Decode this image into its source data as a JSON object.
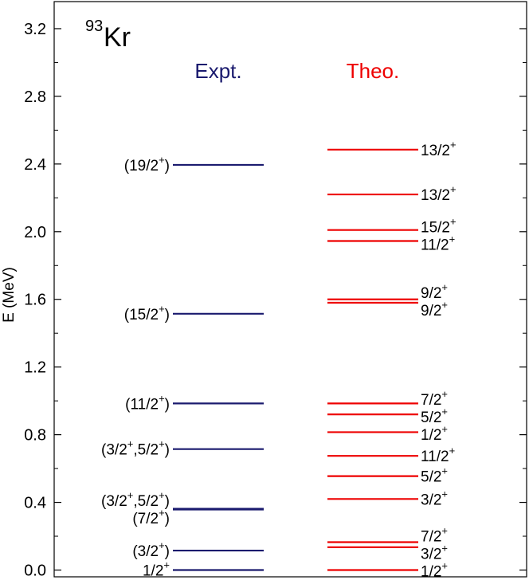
{
  "chart_data": {
    "type": "level-scheme",
    "nucleus": {
      "mass": "93",
      "symbol": "Kr"
    },
    "ylabel": "E (MeV)",
    "ylim": [
      -0.04,
      3.36
    ],
    "yticks": [
      "0.0",
      "0.4",
      "0.8",
      "1.2",
      "1.6",
      "2.0",
      "2.4",
      "2.8",
      "3.2"
    ],
    "columns": [
      {
        "name": "Expt.",
        "color": "#1a1a6e",
        "label_side": "left",
        "levels": [
          {
            "energy": 0.0,
            "parts": [
              [
                "1/2",
                "+",
                ""
              ]
            ]
          },
          {
            "energy": 0.115,
            "parts": [
              [
                "(3/2",
                "+",
                ")"
              ]
            ]
          },
          {
            "energy": 0.358,
            "parts": [
              [
                "(7/2",
                "+",
                ")"
              ]
            ]
          },
          {
            "energy": 0.362,
            "parts": [
              [
                "(3/2",
                "+",
                ","
              ],
              [
                "5/2",
                "+",
                ")"
              ]
            ]
          },
          {
            "energy": 0.715,
            "parts": [
              [
                "(3/2",
                "+",
                ","
              ],
              [
                "5/2",
                "+",
                ")"
              ]
            ]
          },
          {
            "energy": 0.985,
            "parts": [
              [
                "(11/2",
                "+",
                ")"
              ]
            ]
          },
          {
            "energy": 1.515,
            "parts": [
              [
                "(15/2",
                "+",
                ")"
              ]
            ]
          },
          {
            "energy": 2.395,
            "parts": [
              [
                "(19/2",
                "+",
                ")"
              ]
            ]
          }
        ]
      },
      {
        "name": "Theo.",
        "color": "#ee0000",
        "label_side": "right",
        "levels": [
          {
            "energy": 0.0,
            "parts": [
              [
                "1/2",
                "+",
                ""
              ]
            ]
          },
          {
            "energy": 0.135,
            "parts": [
              [
                "3/2",
                "+",
                ""
              ]
            ]
          },
          {
            "energy": 0.165,
            "parts": [
              [
                "7/2",
                "+",
                ""
              ]
            ]
          },
          {
            "energy": 0.42,
            "parts": [
              [
                "3/2",
                "+",
                ""
              ]
            ]
          },
          {
            "energy": 0.555,
            "parts": [
              [
                "5/2",
                "+",
                ""
              ]
            ]
          },
          {
            "energy": 0.675,
            "parts": [
              [
                "11/2",
                "+",
                ""
              ]
            ]
          },
          {
            "energy": 0.815,
            "parts": [
              [
                "1/2",
                "+",
                ""
              ]
            ]
          },
          {
            "energy": 0.92,
            "parts": [
              [
                "5/2",
                "+",
                ""
              ]
            ]
          },
          {
            "energy": 0.985,
            "parts": [
              [
                "7/2",
                "+",
                ""
              ]
            ]
          },
          {
            "energy": 1.58,
            "parts": [
              [
                "9/2",
                "+",
                ""
              ]
            ]
          },
          {
            "energy": 1.6,
            "parts": [
              [
                "9/2",
                "+",
                ""
              ]
            ]
          },
          {
            "energy": 1.945,
            "parts": [
              [
                "11/2",
                "+",
                ""
              ]
            ]
          },
          {
            "energy": 2.01,
            "parts": [
              [
                "15/2",
                "+",
                ""
              ]
            ]
          },
          {
            "energy": 2.22,
            "parts": [
              [
                "13/2",
                "+",
                ""
              ]
            ]
          },
          {
            "energy": 2.485,
            "parts": [
              [
                "13/2",
                "+",
                ""
              ]
            ]
          }
        ]
      }
    ]
  }
}
